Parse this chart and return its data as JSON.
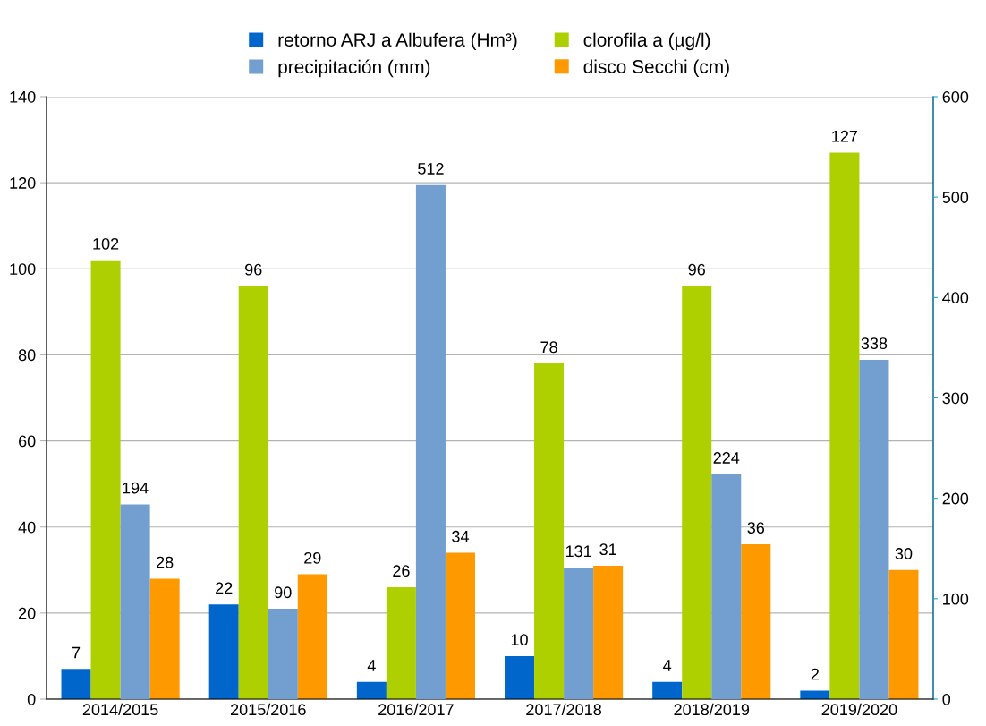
{
  "chart_data": {
    "type": "bar",
    "categories": [
      "2014/2015",
      "2015/2016",
      "2016/2017",
      "2017/2018",
      "2018/2019",
      "2019/2020"
    ],
    "series": [
      {
        "name": "retorno ARJ a Albufera (Hm³)",
        "color": "#0066cc",
        "values": [
          7,
          22,
          4,
          10,
          4,
          2
        ]
      },
      {
        "name": "clorofila a (µg/l)",
        "color": "#aecf00",
        "values": [
          102,
          96,
          26,
          78,
          96,
          127
        ]
      },
      {
        "name": "precipitación (mm)",
        "color": "#729fcf",
        "values": [
          194,
          90,
          512,
          131,
          224,
          338
        ],
        "axis": "y2"
      },
      {
        "name": "disco Secchi (cm)",
        "color": "#ff9900",
        "values": [
          28,
          29,
          34,
          31,
          36,
          30
        ]
      }
    ],
    "ylim": [
      0,
      140
    ],
    "yticks": [
      0,
      20,
      40,
      60,
      80,
      100,
      120,
      140
    ],
    "y2lim": [
      0,
      600
    ],
    "y2ticks": [
      0,
      100,
      200,
      300,
      400,
      500,
      600
    ],
    "data_labels": true,
    "grid": "y",
    "legend": "top"
  }
}
